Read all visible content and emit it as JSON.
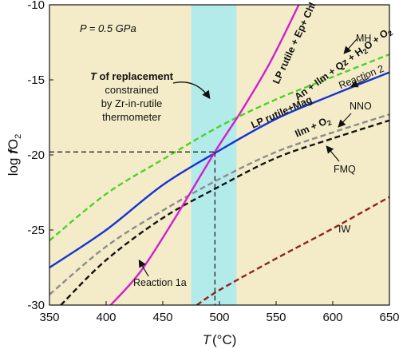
{
  "chart_data": {
    "type": "line",
    "title": "",
    "xlabel": "T(°C)",
    "ylabel": "log fO2",
    "xlim": [
      350,
      650
    ],
    "ylim": [
      -30,
      -10
    ],
    "x_ticks": [
      350,
      400,
      450,
      500,
      550,
      600,
      650
    ],
    "y_ticks": [
      -30,
      -25,
      -20,
      -15,
      -10
    ],
    "background": "#f4ecc8",
    "pressure_label": "P = 0.5 GPa",
    "shaded_band": {
      "x_range": [
        475,
        515
      ],
      "color": "#b3eaea"
    },
    "crosshair": {
      "x": 496,
      "y": -19.8
    },
    "series": [
      {
        "name": "MH",
        "color": "#4cd22a",
        "dash": "dashed",
        "x": [
          350,
          400,
          450,
          500,
          550,
          600,
          650
        ],
        "y": [
          -25.7,
          -22.6,
          -20.3,
          -18.1,
          -16.3,
          -14.8,
          -13.3
        ]
      },
      {
        "name": "LP rutile+Mag / Ilm + O2",
        "color": "#1533d4",
        "dash": "solid",
        "x": [
          350,
          400,
          450,
          500,
          550,
          600,
          650
        ],
        "y": [
          -27.5,
          -25.0,
          -22.0,
          -19.7,
          -17.6,
          -16.0,
          -14.5
        ]
      },
      {
        "name": "NNO",
        "color": "#8c8c8c",
        "dash": "dashed",
        "x": [
          350,
          400,
          450,
          500,
          550,
          600,
          650
        ],
        "y": [
          -29.3,
          -26.1,
          -23.7,
          -21.6,
          -19.8,
          -18.5,
          -17.3
        ]
      },
      {
        "name": "FMQ",
        "color": "#111111",
        "dash": "dashed",
        "x": [
          360,
          400,
          450,
          500,
          550,
          600,
          650
        ],
        "y": [
          -30.0,
          -27.0,
          -24.2,
          -22.1,
          -20.2,
          -18.9,
          -17.7
        ]
      },
      {
        "name": "IW",
        "color": "#8e2418",
        "dash": "dashed",
        "x": [
          480,
          500,
          550,
          600,
          650
        ],
        "y": [
          -30.0,
          -29.0,
          -26.9,
          -24.9,
          -22.8
        ]
      },
      {
        "name": "Reaction 1a",
        "color": "#d11fcf",
        "dash": "solid",
        "x": [
          404,
          430,
          460,
          496,
          520,
          545,
          570
        ],
        "y": [
          -30.0,
          -27.8,
          -24.3,
          -19.8,
          -17.0,
          -13.8,
          -10.0
        ]
      }
    ],
    "annotations": {
      "replacement_T": "T of replacement",
      "replacement_line2": "constrained",
      "replacement_line3": "by Zr-in-rutile",
      "replacement_line4": "thermometer",
      "mh": "MH",
      "reaction2": "Reaction 2",
      "nno": "NNO",
      "fmq": "FMQ",
      "iw": "IW",
      "reaction1a": "Reaction 1a",
      "lp_rutile_ep": "LP rutile + Ep+ Chl",
      "an_ilm": "An + Ilm + Qz + H2O + O2",
      "lp_rutile_mag": "LP rutile+Mag",
      "ilm_o2": "Ilm + O2"
    }
  }
}
